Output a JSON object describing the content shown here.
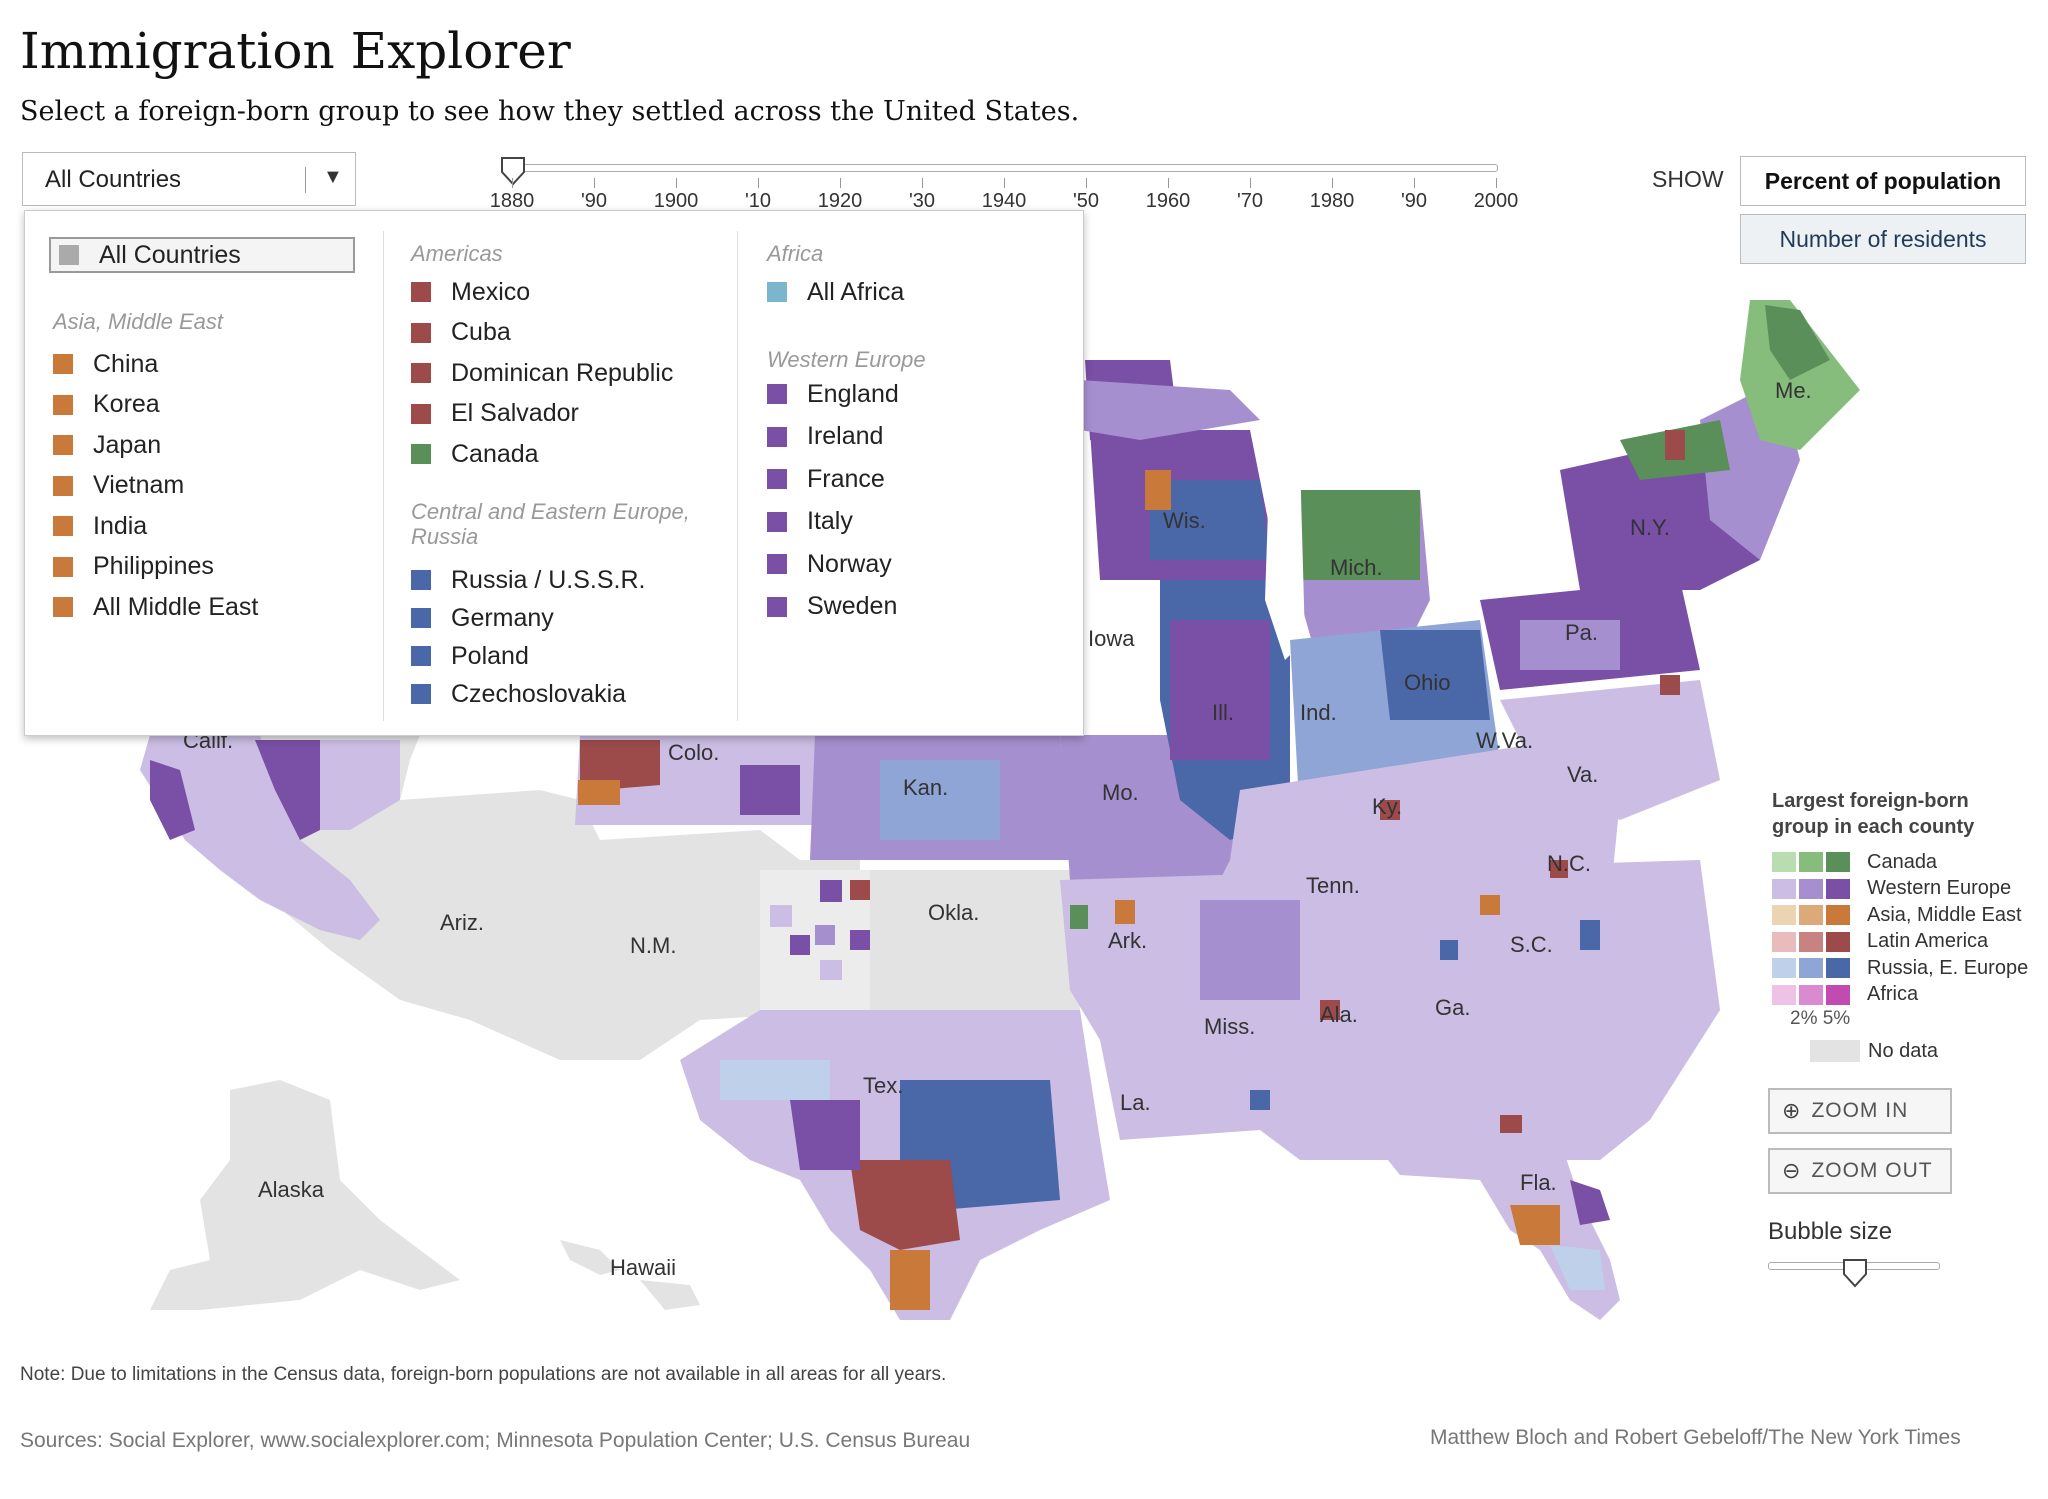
{
  "title": "Immigration Explorer",
  "subtitle": "Select a foreign-born group to see how they settled across the United States.",
  "dropdown": {
    "selected": "All Countries"
  },
  "panel": {
    "all_label": "All Countries",
    "asia": {
      "heading": "Asia, Middle East",
      "items": [
        "China",
        "Korea",
        "Japan",
        "Vietnam",
        "India",
        "Philippines",
        "All Middle East"
      ]
    },
    "americas": {
      "heading": "Americas",
      "items": [
        "Mexico",
        "Cuba",
        "Dominican Republic",
        "El Salvador",
        "Canada"
      ]
    },
    "europe_east": {
      "heading": "Central and Eastern Europe, Russia",
      "items": [
        "Russia / U.S.S.R.",
        "Germany",
        "Poland",
        "Czechoslovakia"
      ]
    },
    "africa": {
      "heading": "Africa",
      "items": [
        "All Africa"
      ]
    },
    "europe_west": {
      "heading": "Western Europe",
      "items": [
        "England",
        "Ireland",
        "France",
        "Italy",
        "Norway",
        "Sweden"
      ]
    }
  },
  "timeline": {
    "years": [
      "1880",
      "'90",
      "1900",
      "'10",
      "1920",
      "'30",
      "1940",
      "'50",
      "1960",
      "'70",
      "1980",
      "'90",
      "2000"
    ],
    "selected_index": 0
  },
  "show": {
    "label": "SHOW",
    "percent": "Percent of population",
    "number": "Number of residents",
    "active": "percent"
  },
  "map": {
    "state_labels": [
      "Me.",
      "N.Y.",
      "Mich.",
      "Wis.",
      "Pa.",
      "Ohio",
      "Ind.",
      "Ill.",
      "W.Va.",
      "Va.",
      "Ky.",
      "Mo.",
      "Kan.",
      "Colo.",
      "Calif.",
      "N.C.",
      "Tenn.",
      "Okla.",
      "Ark.",
      "S.C.",
      "Ariz.",
      "N.M.",
      "Miss.",
      "Ala.",
      "Ga.",
      "Tex.",
      "La.",
      "Fla.",
      "Alaska",
      "Hawaii",
      "Iowa"
    ]
  },
  "legend": {
    "title": "Largest foreign-born group in each county",
    "rows": [
      {
        "label": "Canada",
        "colors": [
          "#b9dcb0",
          "#86bd7c",
          "#5a8f5a"
        ]
      },
      {
        "label": "Western Europe",
        "colors": [
          "#cbbde3",
          "#a68fcf",
          "#7a4fa6"
        ]
      },
      {
        "label": "Asia, Middle East",
        "colors": [
          "#ecd4b3",
          "#dca978",
          "#c97a3a"
        ]
      },
      {
        "label": "Latin America",
        "colors": [
          "#e8bcbc",
          "#c98282",
          "#9c4a4a"
        ]
      },
      {
        "label": "Russia, E. Europe",
        "colors": [
          "#bfd0ea",
          "#8ea5d6",
          "#4a67a8"
        ]
      },
      {
        "label": "Africa",
        "colors": [
          "#eec2e6",
          "#d98ad0",
          "#c14bb0"
        ]
      }
    ],
    "pct_labels": "2%  5%",
    "no_data": "No data",
    "no_data_color": "#e3e3e3"
  },
  "controls": {
    "zoom_in": "ZOOM IN",
    "zoom_out": "ZOOM OUT",
    "bubble_size": "Bubble size"
  },
  "footer": {
    "note": "Note: Due to limitations in the Census data, foreign-born  populations are not available in all areas for all years.",
    "sources": "Sources: Social Explorer, www.socialexplorer.com; Minnesota Population Center; U.S. Census Bureau",
    "credit": "Matthew Bloch and Robert Gebeloff/The New York Times"
  }
}
